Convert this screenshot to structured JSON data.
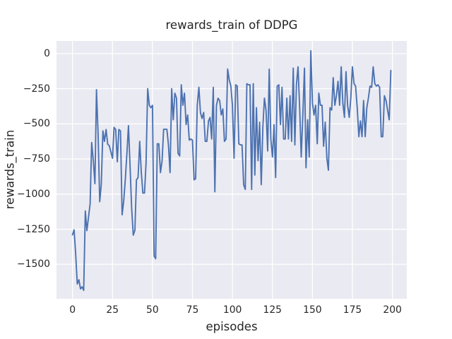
{
  "chart_data": {
    "type": "line",
    "title": "rewards_train of DDPG",
    "xlabel": "episodes",
    "ylabel": "rewards_train",
    "x_ticks": [
      0,
      25,
      50,
      75,
      100,
      125,
      150,
      175,
      200
    ],
    "x_tick_labels": [
      "0",
      "25",
      "50",
      "75",
      "100",
      "125",
      "150",
      "175",
      "200"
    ],
    "y_ticks": [
      0,
      -250,
      -500,
      -750,
      -1000,
      -1250,
      -1500
    ],
    "y_tick_labels": [
      "0",
      "−250",
      "−500",
      "−750",
      "−1000",
      "−1250",
      "−1500"
    ],
    "xlim": [
      -10,
      209
    ],
    "ylim": [
      -1745,
      90
    ],
    "grid": true,
    "legend": null,
    "x_is_index": true,
    "series": [
      {
        "name": "rewards_train",
        "color": "#4c72b0",
        "values": [
          -1290,
          -1255,
          -1430,
          -1640,
          -1610,
          -1675,
          -1660,
          -1685,
          -1120,
          -1260,
          -1165,
          -1070,
          -633,
          -762,
          -926,
          -257,
          -574,
          -1054,
          -930,
          -550,
          -625,
          -540,
          -645,
          -655,
          -700,
          -745,
          -525,
          -540,
          -770,
          -540,
          -550,
          -1147,
          -1053,
          -899,
          -710,
          -513,
          -805,
          -1100,
          -1292,
          -1258,
          -899,
          -882,
          -625,
          -839,
          -993,
          -993,
          -779,
          -250,
          -368,
          -385,
          -368,
          -1440,
          -1460,
          -642,
          -642,
          -847,
          -762,
          -539,
          -539,
          -539,
          -650,
          -847,
          -250,
          -471,
          -282,
          -317,
          -710,
          -728,
          -222,
          -368,
          -282,
          -505,
          -437,
          -616,
          -608,
          -616,
          -899,
          -890,
          -368,
          -240,
          -419,
          -462,
          -419,
          -625,
          -625,
          -479,
          -454,
          -608,
          -240,
          -984,
          -368,
          -317,
          -334,
          -437,
          -394,
          -625,
          -608,
          -110,
          -188,
          -231,
          -368,
          -745,
          -222,
          -231,
          -642,
          -650,
          -650,
          -933,
          -967,
          -214,
          -222,
          -222,
          -967,
          -214,
          -864,
          -385,
          -762,
          -488,
          -933,
          -522,
          -317,
          -402,
          -693,
          -111,
          -608,
          -736,
          -505,
          -882,
          -231,
          -222,
          -505,
          -240,
          -608,
          -608,
          -317,
          -608,
          -300,
          -625,
          -103,
          -650,
          -222,
          -94,
          -385,
          -736,
          -437,
          -103,
          -813,
          -471,
          -736,
          20,
          -351,
          -437,
          -368,
          -642,
          -282,
          -368,
          -368,
          -659,
          -488,
          -745,
          -830,
          -385,
          -402,
          -171,
          -368,
          -300,
          -197,
          -368,
          -94,
          -351,
          -454,
          -128,
          -368,
          -454,
          -317,
          -94,
          -214,
          -231,
          -385,
          -591,
          -479,
          -591,
          -334,
          -591,
          -385,
          -317,
          -231,
          -240,
          -94,
          -214,
          -231,
          -222,
          -240,
          -591,
          -591,
          -300,
          -334,
          -402,
          -471,
          -120
        ]
      }
    ],
    "style": {
      "figure_background": "#ffffff",
      "axes_background": "#eaeaf2",
      "grid_color": "#ffffff",
      "text_color": "#262626",
      "line_width": 1.9,
      "grid_line_width": 1.3
    }
  }
}
